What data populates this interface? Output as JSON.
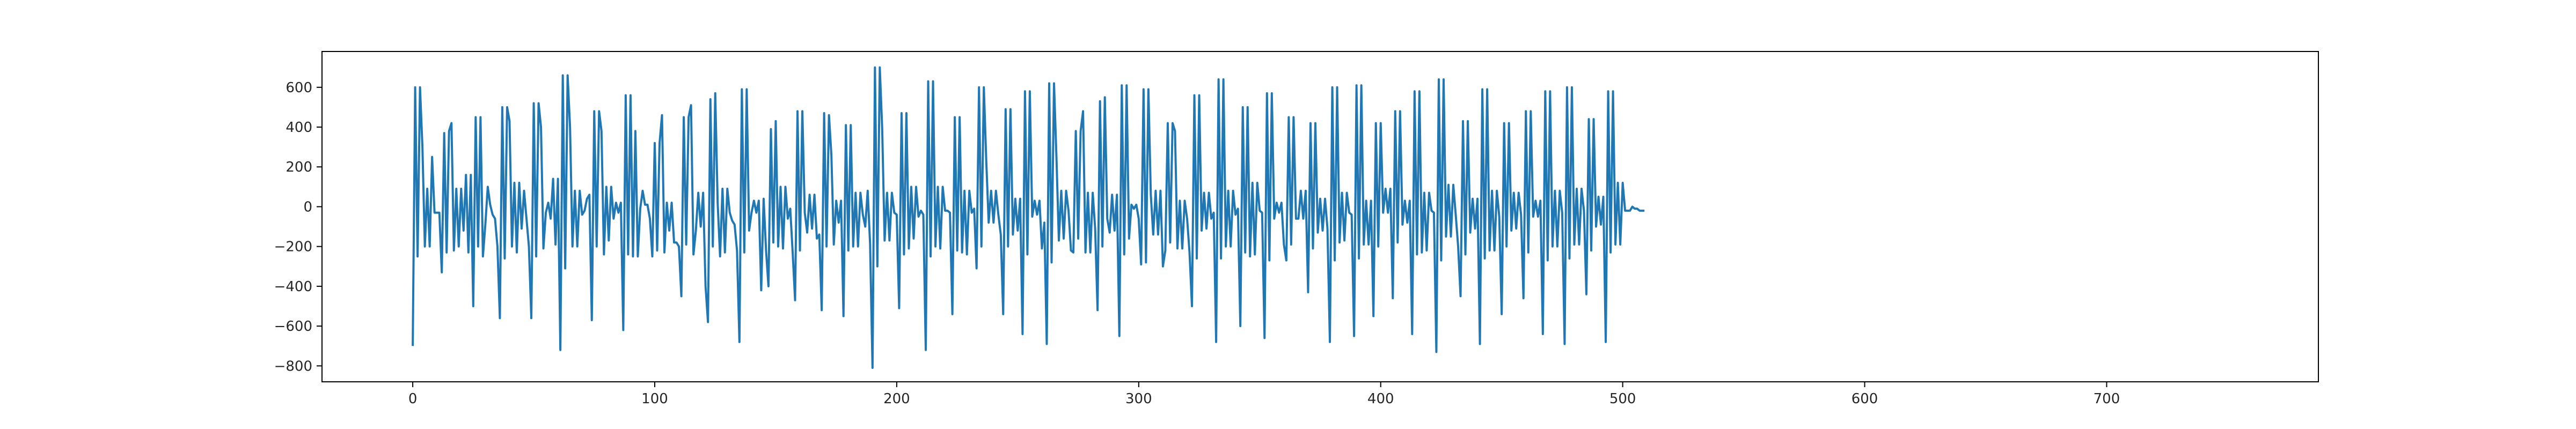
{
  "chart_data": {
    "type": "line",
    "title": "",
    "xlabel": "",
    "ylabel": "",
    "xlim": [
      -37.5,
      787.5
    ],
    "ylim": [
      -880,
      780
    ],
    "xticks": [
      0,
      100,
      200,
      300,
      400,
      500,
      600,
      700
    ],
    "yticks": [
      -800,
      -600,
      -400,
      -200,
      0,
      200,
      400,
      600
    ],
    "grid": false,
    "legend": "none",
    "series": [
      {
        "color": "#1f77b4",
        "x_start": 0,
        "x_step": 1,
        "values": [
          -700,
          600,
          -250,
          600,
          300,
          -200,
          90,
          -200,
          250,
          -30,
          -30,
          -30,
          -330,
          370,
          -230,
          380,
          420,
          -220,
          90,
          -200,
          90,
          -120,
          160,
          -230,
          160,
          -500,
          450,
          -200,
          450,
          -250,
          -90,
          100,
          10,
          -40,
          -60,
          -200,
          -560,
          500,
          -260,
          500,
          430,
          -200,
          120,
          -230,
          120,
          -110,
          80,
          -60,
          -200,
          -560,
          520,
          -250,
          520,
          400,
          -210,
          -30,
          20,
          -60,
          140,
          -190,
          140,
          -720,
          660,
          -310,
          660,
          400,
          -200,
          80,
          -200,
          80,
          -40,
          -20,
          40,
          60,
          -570,
          480,
          -200,
          480,
          380,
          -240,
          100,
          -170,
          100,
          -60,
          20,
          -30,
          20,
          -620,
          560,
          -240,
          560,
          -250,
          380,
          -250,
          -10,
          80,
          10,
          10,
          -60,
          -250,
          320,
          -220,
          320,
          460,
          -230,
          20,
          -120,
          20,
          -180,
          -180,
          -200,
          -450,
          450,
          -190,
          450,
          510,
          -240,
          -120,
          70,
          -100,
          70,
          -400,
          -580,
          540,
          -200,
          570,
          20,
          -250,
          90,
          -230,
          90,
          -30,
          -70,
          -90,
          -220,
          -680,
          590,
          -230,
          590,
          -120,
          -30,
          30,
          -30,
          30,
          -420,
          40,
          -220,
          -400,
          390,
          -180,
          430,
          -200,
          100,
          -210,
          100,
          -60,
          -10,
          -230,
          -470,
          480,
          -220,
          480,
          -30,
          -130,
          60,
          -110,
          60,
          -160,
          -140,
          -520,
          470,
          -200,
          460,
          260,
          -190,
          30,
          -80,
          30,
          -550,
          410,
          -220,
          410,
          -200,
          70,
          -200,
          70,
          -40,
          -100,
          80,
          -190,
          -810,
          700,
          -300,
          700,
          390,
          -170,
          70,
          -170,
          70,
          -30,
          -40,
          -510,
          470,
          -240,
          470,
          -210,
          100,
          -160,
          100,
          -50,
          -20,
          -40,
          -720,
          630,
          -250,
          630,
          -200,
          100,
          -210,
          100,
          -20,
          -20,
          -30,
          -540,
          450,
          -220,
          450,
          -230,
          80,
          -240,
          80,
          -30,
          -10,
          -310,
          600,
          -200,
          600,
          230,
          -80,
          80,
          -80,
          80,
          -40,
          -140,
          -540,
          490,
          -200,
          490,
          -140,
          40,
          -120,
          40,
          -640,
          580,
          -240,
          580,
          -50,
          30,
          -40,
          30,
          -210,
          -80,
          -690,
          620,
          -280,
          620,
          250,
          -170,
          80,
          -160,
          80,
          -20,
          -220,
          -230,
          380,
          -160,
          380,
          480,
          -230,
          70,
          -230,
          70,
          -110,
          -520,
          530,
          -200,
          550,
          -60,
          -130,
          60,
          -120,
          60,
          -650,
          610,
          -240,
          610,
          -160,
          10,
          -10,
          10,
          -60,
          -290,
          590,
          -280,
          590,
          60,
          -140,
          80,
          -140,
          80,
          -300,
          -220,
          420,
          -180,
          420,
          380,
          -210,
          30,
          -210,
          30,
          -60,
          -230,
          -500,
          560,
          -260,
          560,
          -120,
          70,
          -110,
          70,
          -60,
          -30,
          -680,
          640,
          -260,
          640,
          -200,
          80,
          -200,
          80,
          -40,
          -10,
          -600,
          500,
          -230,
          500,
          -250,
          120,
          -240,
          120,
          -20,
          -30,
          -660,
          570,
          -270,
          570,
          -60,
          20,
          -30,
          20,
          -190,
          -270,
          450,
          -190,
          450,
          -60,
          -60,
          80,
          -60,
          80,
          -430,
          420,
          -210,
          420,
          -130,
          40,
          -120,
          40,
          -110,
          -680,
          600,
          -270,
          600,
          -180,
          70,
          -170,
          70,
          -30,
          -40,
          -650,
          610,
          -260,
          610,
          -190,
          30,
          -190,
          30,
          -550,
          420,
          -200,
          420,
          -30,
          90,
          -30,
          90,
          -460,
          480,
          -180,
          480,
          -90,
          30,
          -80,
          30,
          -640,
          580,
          -240,
          580,
          -230,
          70,
          -220,
          70,
          -20,
          -30,
          -730,
          640,
          -270,
          640,
          -150,
          110,
          -150,
          110,
          -40,
          -200,
          -450,
          430,
          -240,
          430,
          -130,
          40,
          -110,
          40,
          -690,
          590,
          -260,
          590,
          -220,
          80,
          -220,
          80,
          -50,
          -540,
          420,
          -200,
          420,
          -120,
          70,
          -110,
          70,
          -40,
          -460,
          480,
          -230,
          480,
          -50,
          30,
          -50,
          30,
          -640,
          580,
          -270,
          580,
          -200,
          80,
          -200,
          80,
          -30,
          -690,
          600,
          -260,
          600,
          -190,
          90,
          -190,
          90,
          -20,
          -440,
          440,
          -220,
          440,
          -100,
          50,
          -90,
          50,
          -680,
          580,
          -230,
          580,
          -190,
          120,
          -190,
          120,
          -20,
          -20,
          -20
        ],
        "tail": [
          0,
          -10,
          -10,
          -20,
          -20,
          -20
        ]
      }
    ]
  }
}
